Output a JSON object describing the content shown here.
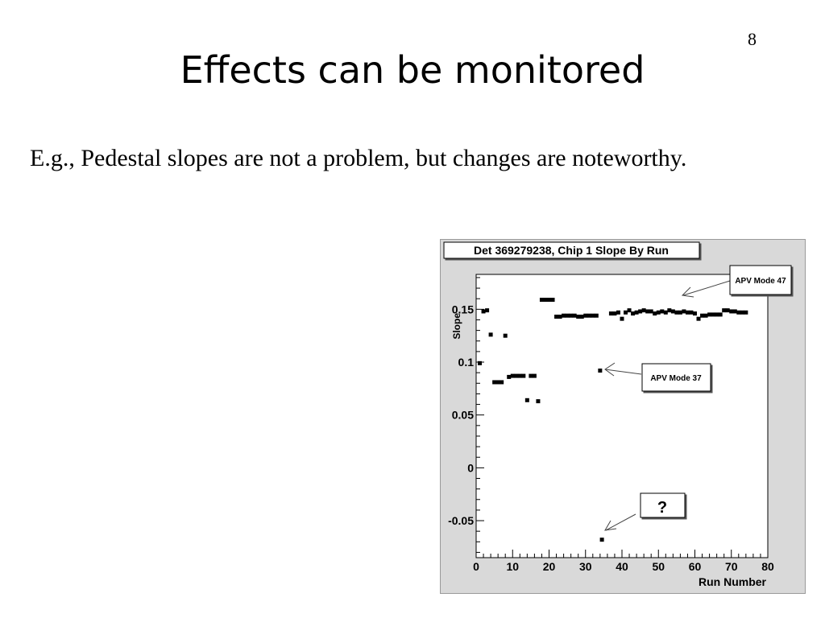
{
  "slide": {
    "number": "8",
    "title": "Effects can be monitored",
    "body": "E.g., Pedestal slopes are not a problem, but changes are noteworthy."
  },
  "chart_data": {
    "type": "scatter",
    "title": "Det 369279238, Chip 1 Slope By Run",
    "xlabel": "Run Number",
    "ylabel": "Slope",
    "xlim": [
      0,
      80
    ],
    "ylim": [
      -0.085,
      0.183
    ],
    "x_ticks": [
      0,
      10,
      20,
      30,
      40,
      50,
      60,
      70,
      80
    ],
    "y_ticks": [
      -0.05,
      0,
      0.05,
      0.1,
      0.15
    ],
    "y_tick_labels": [
      "-0.05",
      "0",
      "0.05",
      "0.1",
      "0.15"
    ],
    "grid": false,
    "annotations": [
      {
        "text": "APV Mode 47"
      },
      {
        "text": "APV Mode 37"
      },
      {
        "text": "?"
      }
    ],
    "series": [
      {
        "points": [
          [
            1,
            0.099
          ],
          [
            2,
            0.148
          ],
          [
            3,
            0.149
          ],
          [
            4,
            0.126
          ],
          [
            5,
            0.081
          ],
          [
            6,
            0.081
          ],
          [
            7,
            0.081
          ],
          [
            8,
            0.125
          ],
          [
            9,
            0.086
          ],
          [
            10,
            0.087
          ],
          [
            11,
            0.087
          ],
          [
            12,
            0.087
          ],
          [
            13,
            0.087
          ],
          [
            14,
            0.064
          ],
          [
            15,
            0.087
          ],
          [
            16,
            0.087
          ],
          [
            17,
            0.063
          ],
          [
            18,
            0.159
          ],
          [
            19,
            0.159
          ],
          [
            20,
            0.159
          ],
          [
            21,
            0.159
          ],
          [
            22,
            0.143
          ],
          [
            23,
            0.143
          ],
          [
            24,
            0.144
          ],
          [
            25,
            0.144
          ],
          [
            26,
            0.144
          ],
          [
            27,
            0.144
          ],
          [
            28,
            0.143
          ],
          [
            29,
            0.143
          ],
          [
            30,
            0.144
          ],
          [
            31,
            0.144
          ],
          [
            32,
            0.144
          ],
          [
            33,
            0.144
          ],
          [
            34,
            0.092
          ],
          [
            34.5,
            -0.068
          ],
          [
            37,
            0.146
          ],
          [
            38,
            0.146
          ],
          [
            39,
            0.147
          ],
          [
            40,
            0.141
          ],
          [
            41,
            0.147
          ],
          [
            42,
            0.149
          ],
          [
            43,
            0.146
          ],
          [
            44,
            0.147
          ],
          [
            45,
            0.148
          ],
          [
            46,
            0.149
          ],
          [
            47,
            0.148
          ],
          [
            48,
            0.148
          ],
          [
            49,
            0.146
          ],
          [
            50,
            0.147
          ],
          [
            51,
            0.148
          ],
          [
            52,
            0.147
          ],
          [
            53,
            0.149
          ],
          [
            54,
            0.148
          ],
          [
            55,
            0.147
          ],
          [
            56,
            0.147
          ],
          [
            57,
            0.148
          ],
          [
            58,
            0.147
          ],
          [
            59,
            0.147
          ],
          [
            60,
            0.146
          ],
          [
            61,
            0.141
          ],
          [
            62,
            0.144
          ],
          [
            63,
            0.144
          ],
          [
            64,
            0.145
          ],
          [
            65,
            0.145
          ],
          [
            66,
            0.145
          ],
          [
            67,
            0.145
          ],
          [
            68,
            0.149
          ],
          [
            69,
            0.149
          ],
          [
            70,
            0.148
          ],
          [
            71,
            0.148
          ],
          [
            72,
            0.147
          ],
          [
            73,
            0.147
          ],
          [
            74,
            0.147
          ]
        ]
      }
    ]
  }
}
